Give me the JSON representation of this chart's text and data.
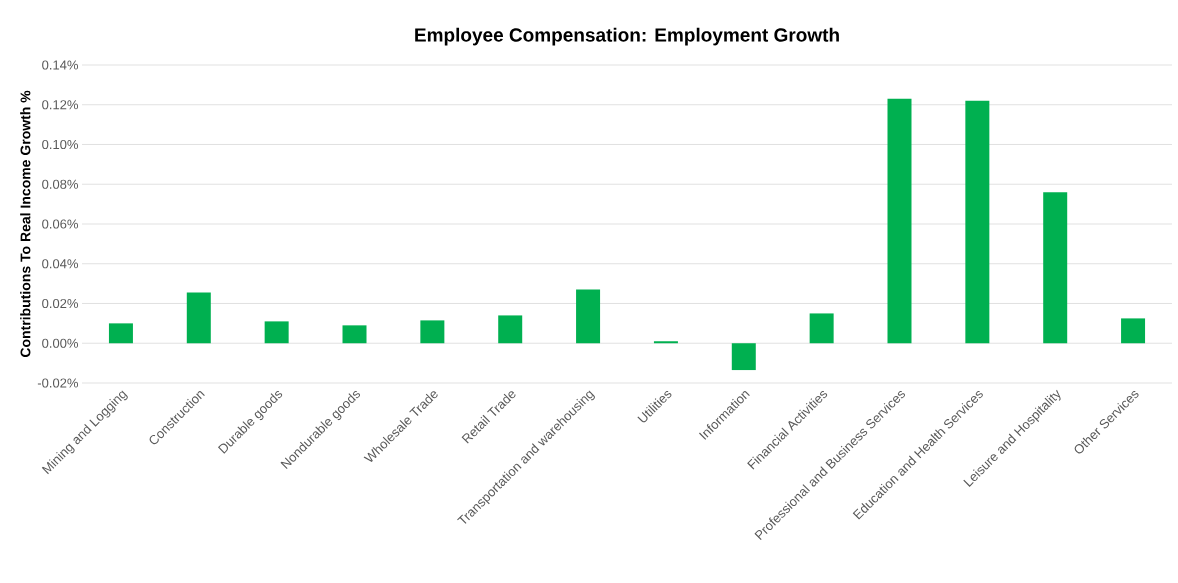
{
  "chart_data": {
    "type": "bar",
    "title": "Employee Compensation: Employment Growth",
    "ylabel": "Contributions To Real Income Growth %",
    "categories": [
      "Mining and Logging",
      "Construction",
      "Durable goods",
      "Nondurable goods",
      "Wholesale Trade",
      "Retail Trade",
      "Transportation and warehousing",
      "Utilities",
      "Information",
      "Financial Activities",
      "Professional and Business Services",
      "Education and Health Services",
      "Leisure and Hospitality",
      "Other Services"
    ],
    "values": [
      0.01,
      0.0255,
      0.011,
      0.009,
      0.0115,
      0.014,
      0.027,
      0.001,
      -0.0135,
      0.015,
      0.123,
      0.122,
      0.076,
      0.0125
    ],
    "color": "#00b050",
    "ylim": [
      -0.02,
      0.14
    ],
    "yticks": [
      {
        "value": -0.02,
        "label": "-0.02%"
      },
      {
        "value": 0,
        "label": "0.00%"
      },
      {
        "value": 0.02,
        "label": "0.02%"
      },
      {
        "value": 0.04,
        "label": "0.04%"
      },
      {
        "value": 0.06,
        "label": "0.06%"
      },
      {
        "value": 0.08,
        "label": "0.08%"
      },
      {
        "value": 0.1,
        "label": "0.10%"
      },
      {
        "value": 0.12,
        "label": "0.12%"
      },
      {
        "value": 0.14,
        "label": "0.14%"
      }
    ],
    "grid": "y"
  }
}
